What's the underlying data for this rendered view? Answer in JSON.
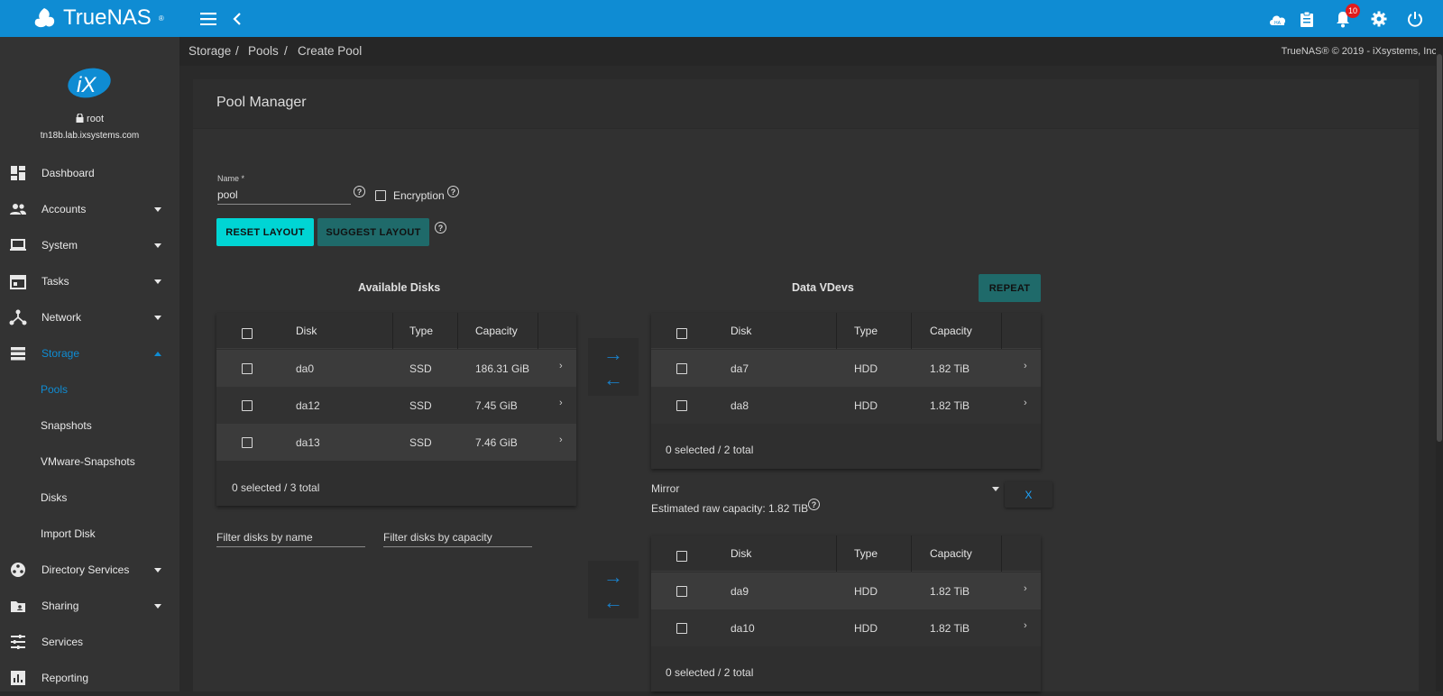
{
  "app": {
    "name": "TrueNAS",
    "trademark": "®"
  },
  "topbar": {
    "notifications_count": "10"
  },
  "sidebar": {
    "user": "root",
    "host": "tn18b.lab.ixsystems.com",
    "logo_text": "iX",
    "items": [
      {
        "label": "Dashboard",
        "icon": "dashboard-icon"
      },
      {
        "label": "Accounts",
        "icon": "accounts-icon"
      },
      {
        "label": "System",
        "icon": "laptop-icon"
      },
      {
        "label": "Tasks",
        "icon": "calendar-icon"
      },
      {
        "label": "Network",
        "icon": "network-icon"
      },
      {
        "label": "Storage",
        "icon": "storage-icon"
      }
    ],
    "storage_sub": [
      "Pools",
      "Snapshots",
      "VMware-Snapshots",
      "Disks",
      "Import Disk"
    ],
    "items_after": [
      {
        "label": "Directory Services",
        "icon": "directory-icon"
      },
      {
        "label": "Sharing",
        "icon": "sharing-icon"
      },
      {
        "label": "Services",
        "icon": "services-icon"
      },
      {
        "label": "Reporting",
        "icon": "reporting-icon"
      }
    ]
  },
  "breadcrumb": [
    "Storage",
    "Pools",
    "Create Pool"
  ],
  "copyright": "TrueNAS® © 2019 - iXsystems, Inc.",
  "pool_manager": {
    "title": "Pool Manager",
    "name_label": "Name *",
    "name_value": "pool",
    "encryption_label": "Encryption",
    "reset_button": "RESET LAYOUT",
    "suggest_button": "SUGGEST LAYOUT",
    "repeat_button": "REPEAT",
    "x_button": "X"
  },
  "available_disks": {
    "title": "Available Disks",
    "headers": [
      "Disk",
      "Type",
      "Capacity"
    ],
    "rows": [
      {
        "disk": "da0",
        "type": "SSD",
        "capacity": "186.31 GiB"
      },
      {
        "disk": "da12",
        "type": "SSD",
        "capacity": "7.45 GiB"
      },
      {
        "disk": "da13",
        "type": "SSD",
        "capacity": "7.46 GiB"
      }
    ],
    "footer": "0 selected / 3 total",
    "filter_name_placeholder": "Filter disks by name",
    "filter_capacity_placeholder": "Filter disks by capacity"
  },
  "data_vdevs": {
    "title": "Data VDevs",
    "headers": [
      "Disk",
      "Type",
      "Capacity"
    ],
    "vdev1": {
      "rows": [
        {
          "disk": "da7",
          "type": "HDD",
          "capacity": "1.82 TiB"
        },
        {
          "disk": "da8",
          "type": "HDD",
          "capacity": "1.82 TiB"
        }
      ],
      "footer": "0 selected / 2 total"
    },
    "layout_value": "Mirror",
    "raw_capacity": "Estimated raw capacity: 1.82 TiB",
    "vdev2": {
      "rows": [
        {
          "disk": "da9",
          "type": "HDD",
          "capacity": "1.82 TiB"
        },
        {
          "disk": "da10",
          "type": "HDD",
          "capacity": "1.82 TiB"
        }
      ],
      "footer": "0 selected / 2 total"
    }
  }
}
